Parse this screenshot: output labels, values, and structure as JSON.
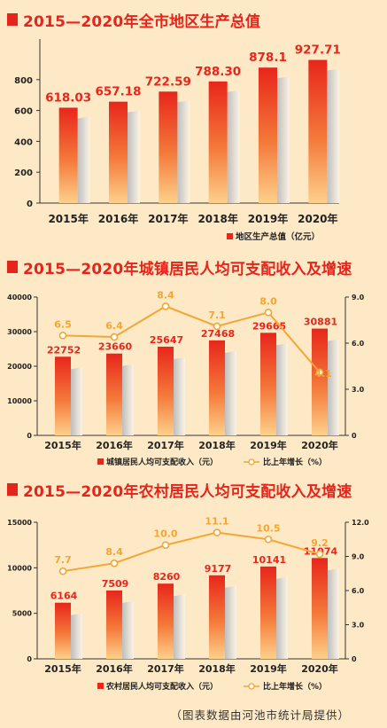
{
  "chart_data": [
    {
      "type": "bar",
      "title": "2015—2020年全市地区生产总值",
      "categories": [
        "2015年",
        "2016年",
        "2017年",
        "2018年",
        "2019年",
        "2020年"
      ],
      "series": [
        {
          "name": "地区生产总值（亿元）",
          "values": [
            618.03,
            657.18,
            722.59,
            788.3,
            878.1,
            927.71
          ]
        }
      ],
      "value_labels": [
        "618.03",
        "657.18",
        "722.59",
        "788.30",
        "878.1",
        "927.71"
      ],
      "ylim": [
        0,
        1000
      ],
      "yticks": [
        "0",
        "200",
        "400",
        "600",
        "800"
      ],
      "grid": false,
      "legend": "bottom-right"
    },
    {
      "type": "bar+line",
      "title": "2015—2020年城镇居民人均可支配收入及增速",
      "categories": [
        "2015年",
        "2016年",
        "2017年",
        "2018年",
        "2019年",
        "2020年"
      ],
      "series": [
        {
          "name": "城镇居民人均可支配收入（元）",
          "type": "bar",
          "axis": "left",
          "values": [
            22752,
            23660,
            25647,
            27468,
            29665,
            30881
          ]
        },
        {
          "name": "比上年增长（%）",
          "type": "line",
          "axis": "right",
          "values": [
            6.5,
            6.4,
            8.4,
            7.1,
            8.0,
            4.1
          ]
        }
      ],
      "bar_labels": [
        "22752",
        "23660",
        "25647",
        "27468",
        "29665",
        "30881"
      ],
      "line_labels": [
        "6.5",
        "6.4",
        "8.4",
        "7.1",
        "8.0",
        "4.1"
      ],
      "ylim_left": [
        0,
        40000
      ],
      "yticks_left": [
        "0",
        "10000",
        "20000",
        "30000",
        "40000"
      ],
      "ylim_right": [
        0,
        9.0
      ],
      "yticks_right": [
        "0",
        "3.0",
        "6.0",
        "9.0"
      ],
      "grid": false,
      "legend": "bottom"
    },
    {
      "type": "bar+line",
      "title": "2015—2020年农村居民人均可支配收入及增速",
      "categories": [
        "2015年",
        "2016年",
        "2017年",
        "2018年",
        "2019年",
        "2020年"
      ],
      "series": [
        {
          "name": "农村居民人均可支配收入（元）",
          "type": "bar",
          "axis": "left",
          "values": [
            6164,
            7509,
            8260,
            9177,
            10141,
            11074
          ]
        },
        {
          "name": "比上年增长（%）",
          "type": "line",
          "axis": "right",
          "values": [
            7.7,
            8.4,
            10.0,
            11.1,
            10.5,
            9.2
          ]
        }
      ],
      "bar_labels": [
        "6164",
        "7509",
        "8260",
        "9177",
        "10141",
        "11074"
      ],
      "line_labels": [
        "7.7",
        "8.4",
        "10.0",
        "11.1",
        "10.5",
        "9.2"
      ],
      "ylim_left": [
        0,
        15000
      ],
      "yticks_left": [
        "0",
        "5000",
        "10000",
        "15000"
      ],
      "ylim_right": [
        0,
        12.0
      ],
      "yticks_right": [
        "0",
        "3.0",
        "6.0",
        "9.0",
        "12.0"
      ],
      "grid": false,
      "legend": "bottom"
    }
  ],
  "source_note": "（图表数据由河池市统计局提供）",
  "colors": {
    "bar_top": "#e8261b",
    "bar_bottom": "#fdd08a",
    "line": "#f4a634",
    "title": "#e5251c",
    "shadow": "#c8c8c8"
  }
}
